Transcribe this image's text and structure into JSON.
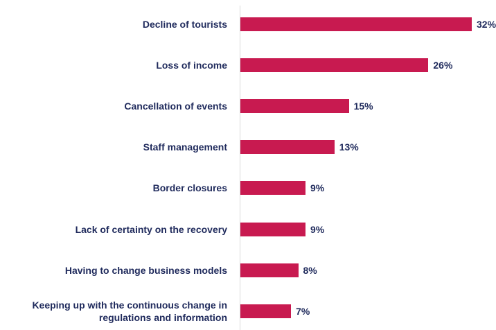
{
  "chart_data": {
    "type": "bar",
    "orientation": "horizontal",
    "categories": [
      "Decline of tourists",
      "Loss of income",
      "Cancellation of events",
      "Staff management",
      "Border closures",
      "Lack of certainty on the recovery",
      "Having to change business models",
      "Keeping up with the continuous change in regulations and information"
    ],
    "values": [
      32,
      26,
      15,
      13,
      9,
      9,
      8,
      7
    ],
    "value_labels": [
      "32%",
      "26%",
      "15%",
      "13%",
      "9%",
      "9%",
      "8%",
      "7%"
    ],
    "color": "#c81a50"
  }
}
